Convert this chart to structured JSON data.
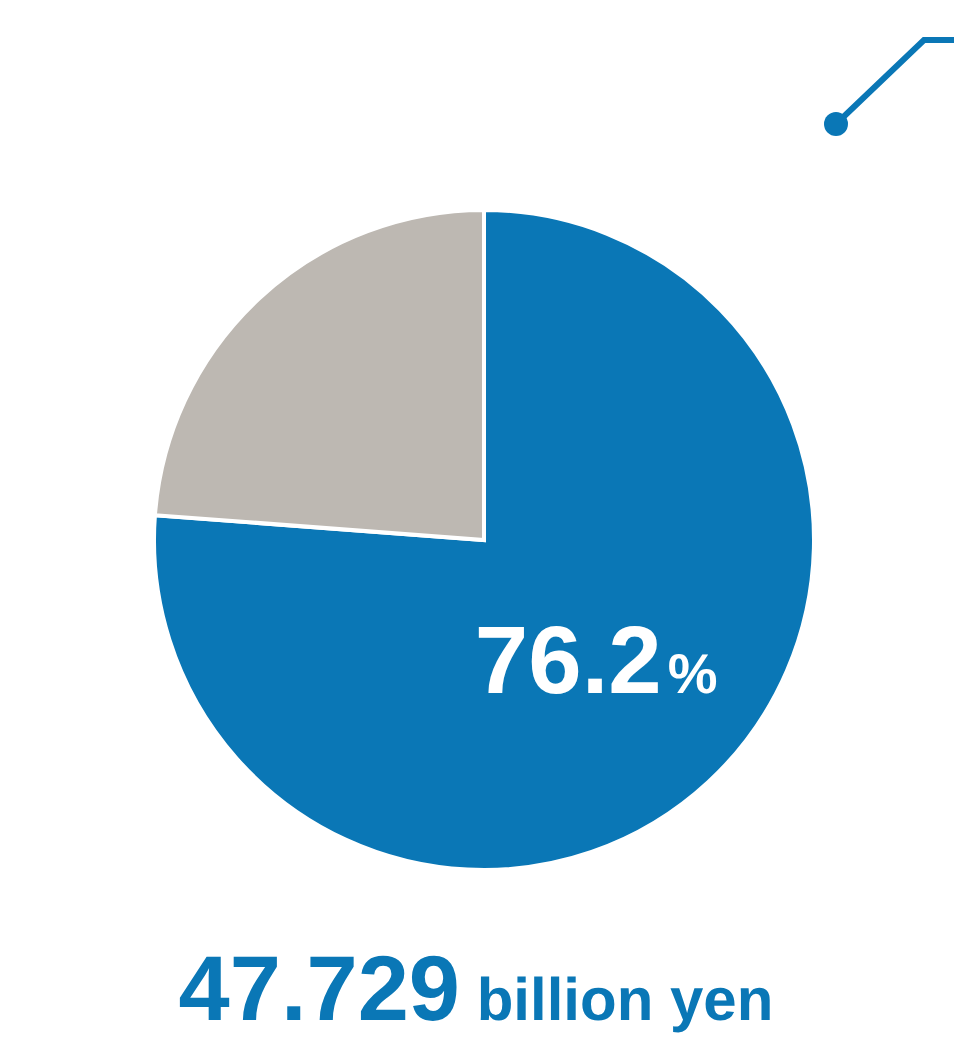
{
  "chart_data": {
    "type": "pie",
    "categories": [
      null,
      null
    ],
    "values": [
      76.2,
      23.8
    ],
    "colors": [
      "#0a77b6",
      "#bdb8b2"
    ],
    "value_labels": [
      "76.2%",
      null
    ],
    "annotations": [
      "47.729 billion yen"
    ]
  }
}
